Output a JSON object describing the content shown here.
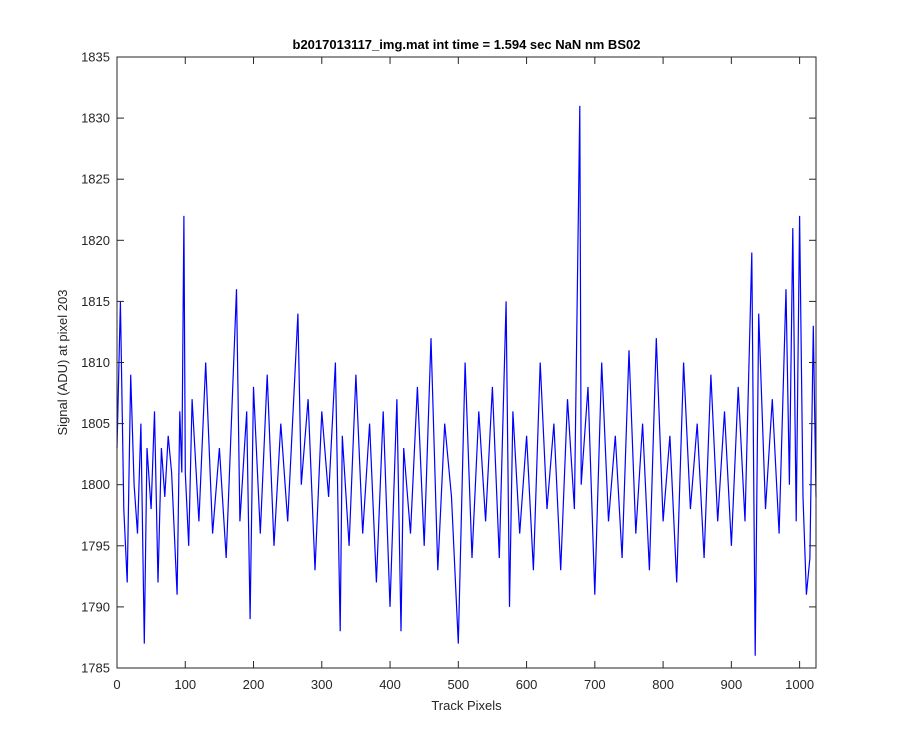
{
  "chart_data": {
    "type": "line",
    "title": "b2017013117_img.mat int time = 1.594 sec  NaN nm BS02",
    "xlabel": "Track Pixels",
    "ylabel": "Signal (ADU) at pixel 203",
    "xlim": [
      0,
      1024
    ],
    "ylim": [
      1785,
      1835
    ],
    "xticks": [
      0,
      100,
      200,
      300,
      400,
      500,
      600,
      700,
      800,
      900,
      1000
    ],
    "yticks": [
      1785,
      1790,
      1795,
      1800,
      1805,
      1810,
      1815,
      1820,
      1825,
      1830,
      1835
    ],
    "grid": false,
    "series": [
      {
        "color": "#0000ff",
        "description": "noisy signal fluctuating around 1802 ADU across 1024 track pixels",
        "x": [
          0,
          5,
          10,
          15,
          20,
          25,
          30,
          35,
          40,
          44,
          50,
          55,
          60,
          65,
          70,
          75,
          80,
          88,
          92,
          95,
          98,
          100,
          105,
          110,
          120,
          130,
          140,
          150,
          160,
          175,
          180,
          190,
          195,
          200,
          210,
          220,
          230,
          240,
          250,
          265,
          270,
          280,
          290,
          300,
          310,
          320,
          327,
          330,
          340,
          350,
          360,
          370,
          380,
          390,
          400,
          410,
          416,
          420,
          430,
          440,
          450,
          460,
          470,
          480,
          490,
          500,
          510,
          520,
          530,
          540,
          550,
          560,
          570,
          575,
          580,
          590,
          600,
          610,
          620,
          630,
          640,
          650,
          660,
          670,
          678,
          680,
          690,
          700,
          710,
          720,
          730,
          740,
          750,
          760,
          770,
          780,
          790,
          800,
          810,
          820,
          830,
          840,
          850,
          860,
          870,
          880,
          890,
          900,
          910,
          920,
          930,
          935,
          940,
          950,
          960,
          970,
          980,
          985,
          990,
          995,
          1000,
          1005,
          1010,
          1015,
          1020,
          1024
        ],
        "y": [
          1803,
          1815,
          1798,
          1792,
          1809,
          1800,
          1796,
          1805,
          1787,
          1803,
          1798,
          1806,
          1792,
          1803,
          1799,
          1804,
          1801,
          1791,
          1806,
          1801,
          1822,
          1801,
          1795,
          1807,
          1797,
          1810,
          1796,
          1803,
          1794,
          1816,
          1797,
          1806,
          1789,
          1808,
          1796,
          1809,
          1795,
          1805,
          1797,
          1814,
          1800,
          1807,
          1793,
          1806,
          1799,
          1810,
          1788,
          1804,
          1795,
          1809,
          1796,
          1805,
          1792,
          1806,
          1790,
          1807,
          1788,
          1803,
          1796,
          1808,
          1795,
          1812,
          1793,
          1805,
          1799,
          1787,
          1810,
          1794,
          1806,
          1797,
          1808,
          1794,
          1815,
          1790,
          1806,
          1796,
          1804,
          1793,
          1810,
          1798,
          1805,
          1793,
          1807,
          1798,
          1831,
          1800,
          1808,
          1791,
          1810,
          1797,
          1804,
          1794,
          1811,
          1796,
          1805,
          1793,
          1812,
          1797,
          1804,
          1792,
          1810,
          1798,
          1805,
          1794,
          1809,
          1797,
          1806,
          1795,
          1808,
          1797,
          1819,
          1786,
          1814,
          1798,
          1807,
          1796,
          1816,
          1800,
          1821,
          1797,
          1822,
          1799,
          1791,
          1794,
          1813,
          1799
        ]
      }
    ]
  }
}
